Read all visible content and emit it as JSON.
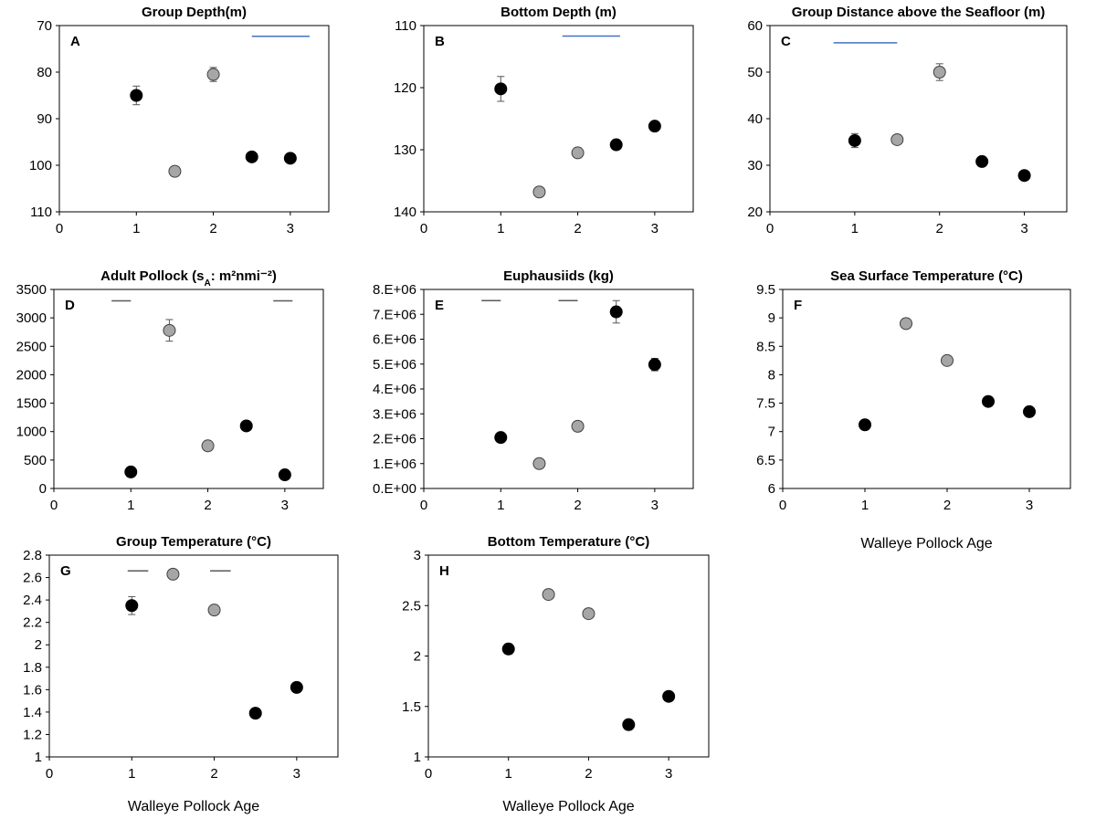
{
  "chart_data": [
    {
      "id": "A",
      "type": "scatter",
      "panel_label": "A",
      "title": "Group Depth(m)",
      "xlabel": "",
      "xlim": [
        0,
        3.5
      ],
      "xticks": [
        0,
        1,
        2,
        3
      ],
      "ylim": [
        70,
        110
      ],
      "y_inverted": true,
      "yticks": [
        "70",
        "80",
        "90",
        "100",
        "110"
      ],
      "ytick_values": [
        70,
        80,
        90,
        100,
        110
      ],
      "points": [
        {
          "x": 1,
          "y": 85,
          "err": 2,
          "fill": "black"
        },
        {
          "x": 1.5,
          "y": 101.3,
          "err": 0,
          "fill": "grey"
        },
        {
          "x": 2,
          "y": 80.5,
          "err": 1.5,
          "fill": "grey"
        },
        {
          "x": 2.5,
          "y": 98.2,
          "err": 0,
          "fill": "black"
        },
        {
          "x": 3,
          "y": 98.5,
          "err": 0,
          "fill": "black"
        }
      ],
      "significance_lines": [
        {
          "x1": 2.5,
          "x2": 3.25,
          "y": 72.3,
          "color": "blue"
        }
      ]
    },
    {
      "id": "B",
      "type": "scatter",
      "panel_label": "B",
      "title": "Bottom Depth (m)",
      "xlabel": "",
      "xlim": [
        0,
        3.5
      ],
      "xticks": [
        0,
        1,
        2,
        3
      ],
      "ylim": [
        110,
        140
      ],
      "y_inverted": true,
      "yticks": [
        "110",
        "120",
        "130",
        "140"
      ],
      "ytick_values": [
        110,
        120,
        130,
        140
      ],
      "points": [
        {
          "x": 1,
          "y": 120.2,
          "err": 2,
          "fill": "black"
        },
        {
          "x": 1.5,
          "y": 136.8,
          "err": 0,
          "fill": "grey"
        },
        {
          "x": 2,
          "y": 130.5,
          "err": 0,
          "fill": "grey"
        },
        {
          "x": 2.5,
          "y": 129.2,
          "err": 0,
          "fill": "black"
        },
        {
          "x": 3,
          "y": 126.2,
          "err": 0,
          "fill": "black"
        }
      ],
      "significance_lines": [
        {
          "x1": 1.8,
          "x2": 2.55,
          "y": 111.7,
          "color": "blue"
        }
      ]
    },
    {
      "id": "C",
      "type": "scatter",
      "panel_label": "C",
      "title": "Group Distance above the Seafloor (m)",
      "xlabel": "",
      "xlim": [
        0,
        3.5
      ],
      "xticks": [
        0,
        1,
        2,
        3
      ],
      "ylim": [
        20,
        60
      ],
      "y_inverted": false,
      "yticks": [
        "20",
        "30",
        "40",
        "50",
        "60"
      ],
      "ytick_values": [
        20,
        30,
        40,
        50,
        60
      ],
      "points": [
        {
          "x": 1,
          "y": 35.3,
          "err": 1.5,
          "fill": "black"
        },
        {
          "x": 1.5,
          "y": 35.5,
          "err": 0,
          "fill": "grey"
        },
        {
          "x": 2,
          "y": 50,
          "err": 1.8,
          "fill": "grey"
        },
        {
          "x": 2.5,
          "y": 30.8,
          "err": 0,
          "fill": "black"
        },
        {
          "x": 3,
          "y": 27.8,
          "err": 0,
          "fill": "black"
        }
      ],
      "significance_lines": [
        {
          "x1": 0.75,
          "x2": 1.5,
          "y": 56.3,
          "color": "blue"
        }
      ]
    },
    {
      "id": "D",
      "type": "scatter",
      "panel_label": "D",
      "title": "Adult Pollock (s",
      "title_sub": "A",
      "title_rest": ": m²nmi⁻²)",
      "xlabel": "",
      "xlim": [
        0,
        3.5
      ],
      "xticks": [
        0,
        1,
        2,
        3
      ],
      "ylim": [
        0,
        3500
      ],
      "y_inverted": false,
      "yticks": [
        "0",
        "500",
        "1000",
        "1500",
        "2000",
        "2500",
        "3000",
        "3500"
      ],
      "ytick_values": [
        0,
        500,
        1000,
        1500,
        2000,
        2500,
        3000,
        3500
      ],
      "points": [
        {
          "x": 1,
          "y": 290,
          "err": 0,
          "fill": "black"
        },
        {
          "x": 1.5,
          "y": 2780,
          "err": 190,
          "fill": "grey"
        },
        {
          "x": 2,
          "y": 750,
          "err": 0,
          "fill": "grey"
        },
        {
          "x": 2.5,
          "y": 1100,
          "err": 0,
          "fill": "black"
        },
        {
          "x": 3,
          "y": 240,
          "err": 0,
          "fill": "black"
        }
      ],
      "significance_lines": [
        {
          "x1": 0.75,
          "x2": 1,
          "y": 3300,
          "color": "grey"
        },
        {
          "x1": 2.85,
          "x2": 3.1,
          "y": 3300,
          "color": "grey"
        }
      ]
    },
    {
      "id": "E",
      "type": "scatter",
      "panel_label": "E",
      "title": "Euphausiids (kg)",
      "xlabel": "",
      "xlim": [
        0,
        3.5
      ],
      "xticks": [
        0,
        1,
        2,
        3
      ],
      "ylim": [
        0,
        8000000
      ],
      "y_inverted": false,
      "yticks": [
        "0.E+00",
        "1.E+06",
        "2.E+06",
        "3.E+06",
        "4.E+06",
        "5.E+06",
        "6.E+06",
        "7.E+06",
        "8.E+06"
      ],
      "ytick_values": [
        0,
        1000000,
        2000000,
        3000000,
        4000000,
        5000000,
        6000000,
        7000000,
        8000000
      ],
      "points": [
        {
          "x": 1,
          "y": 2050000,
          "err": 0,
          "fill": "black"
        },
        {
          "x": 1.5,
          "y": 1000000,
          "err": 0,
          "fill": "grey"
        },
        {
          "x": 2,
          "y": 2500000,
          "err": 0,
          "fill": "grey"
        },
        {
          "x": 2.5,
          "y": 7100000,
          "err": 450000,
          "fill": "black"
        },
        {
          "x": 3,
          "y": 4980000,
          "err": 250000,
          "fill": "black"
        }
      ],
      "significance_lines": [
        {
          "x1": 0.75,
          "x2": 1,
          "y": 7550000,
          "color": "grey"
        },
        {
          "x1": 1.75,
          "x2": 2,
          "y": 7550000,
          "color": "grey"
        }
      ]
    },
    {
      "id": "F",
      "type": "scatter",
      "panel_label": "F",
      "title": "Sea Surface Temperature (°C)",
      "xlabel": "Walleye Pollock Age",
      "xlim": [
        0,
        3.5
      ],
      "xticks": [
        0,
        1,
        2,
        3
      ],
      "ylim": [
        6,
        9.5
      ],
      "y_inverted": false,
      "yticks": [
        "6",
        "6.5",
        "7",
        "7.5",
        "8",
        "8.5",
        "9",
        "9.5"
      ],
      "ytick_values": [
        6,
        6.5,
        7,
        7.5,
        8,
        8.5,
        9,
        9.5
      ],
      "points": [
        {
          "x": 1,
          "y": 7.12,
          "err": 0.08,
          "fill": "black"
        },
        {
          "x": 1.5,
          "y": 8.9,
          "err": 0,
          "fill": "grey"
        },
        {
          "x": 2,
          "y": 8.25,
          "err": 0.08,
          "fill": "grey"
        },
        {
          "x": 2.5,
          "y": 7.53,
          "err": 0,
          "fill": "black"
        },
        {
          "x": 3,
          "y": 7.35,
          "err": 0,
          "fill": "black"
        }
      ],
      "significance_lines": []
    },
    {
      "id": "G",
      "type": "scatter",
      "panel_label": "G",
      "title": "Group Temperature (°C)",
      "xlabel": "Walleye Pollock Age",
      "xlim": [
        0,
        3.5
      ],
      "xticks": [
        0,
        1,
        2,
        3
      ],
      "ylim": [
        1,
        2.8
      ],
      "y_inverted": false,
      "yticks": [
        "1",
        "1.2",
        "1.4",
        "1.6",
        "1.8",
        "2",
        "2.2",
        "2.4",
        "2.6",
        "2.8"
      ],
      "ytick_values": [
        1,
        1.2,
        1.4,
        1.6,
        1.8,
        2,
        2.2,
        2.4,
        2.6,
        2.8
      ],
      "points": [
        {
          "x": 1,
          "y": 2.35,
          "err": 0.08,
          "fill": "black"
        },
        {
          "x": 1.5,
          "y": 2.63,
          "err": 0,
          "fill": "grey"
        },
        {
          "x": 2,
          "y": 2.31,
          "err": 0,
          "fill": "grey"
        },
        {
          "x": 2.5,
          "y": 1.39,
          "err": 0,
          "fill": "black"
        },
        {
          "x": 3,
          "y": 1.62,
          "err": 0,
          "fill": "black"
        }
      ],
      "significance_lines": [
        {
          "x1": 0.95,
          "x2": 1.2,
          "y": 2.66,
          "color": "grey"
        },
        {
          "x1": 1.95,
          "x2": 2.2,
          "y": 2.66,
          "color": "grey"
        }
      ]
    },
    {
      "id": "H",
      "type": "scatter",
      "panel_label": "H",
      "title": "Bottom Temperature (°C)",
      "xlabel": "Walleye Pollock Age",
      "xlim": [
        0,
        3.5
      ],
      "xticks": [
        0,
        1,
        2,
        3
      ],
      "ylim": [
        1,
        3
      ],
      "y_inverted": false,
      "yticks": [
        "1",
        "1.5",
        "2",
        "2.5",
        "3"
      ],
      "ytick_values": [
        1,
        1.5,
        2,
        2.5,
        3
      ],
      "points": [
        {
          "x": 1,
          "y": 2.07,
          "err": 0.05,
          "fill": "black"
        },
        {
          "x": 1.5,
          "y": 2.61,
          "err": 0,
          "fill": "grey"
        },
        {
          "x": 2,
          "y": 2.42,
          "err": 0,
          "fill": "grey"
        },
        {
          "x": 2.5,
          "y": 1.32,
          "err": 0.05,
          "fill": "black"
        },
        {
          "x": 3,
          "y": 1.6,
          "err": 0,
          "fill": "black"
        }
      ],
      "significance_lines": []
    }
  ]
}
